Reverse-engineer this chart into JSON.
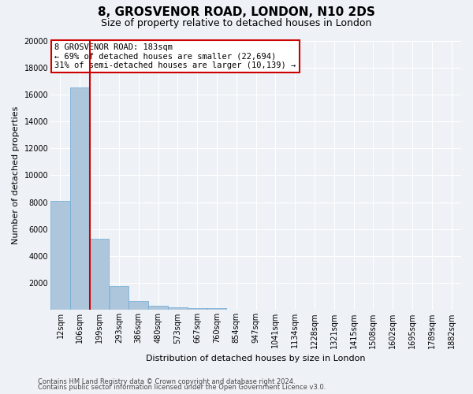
{
  "title": "8, GROSVENOR ROAD, LONDON, N10 2DS",
  "subtitle": "Size of property relative to detached houses in London",
  "xlabel": "Distribution of detached houses by size in London",
  "ylabel": "Number of detached properties",
  "categories": [
    "12sqm",
    "106sqm",
    "199sqm",
    "293sqm",
    "386sqm",
    "480sqm",
    "573sqm",
    "667sqm",
    "760sqm",
    "854sqm",
    "947sqm",
    "1041sqm",
    "1134sqm",
    "1228sqm",
    "1321sqm",
    "1415sqm",
    "1508sqm",
    "1602sqm",
    "1695sqm",
    "1789sqm",
    "1882sqm"
  ],
  "values": [
    8100,
    16500,
    5300,
    1800,
    650,
    300,
    200,
    150,
    130,
    0,
    0,
    0,
    0,
    0,
    0,
    0,
    0,
    0,
    0,
    0,
    0
  ],
  "bar_color": "#aec6dc",
  "bar_edge_color": "#6aaad4",
  "vline_color": "#cc0000",
  "annotation_text": "8 GROSVENOR ROAD: 183sqm\n← 69% of detached houses are smaller (22,694)\n31% of semi-detached houses are larger (10,139) →",
  "annotation_box_color": "#ffffff",
  "annotation_box_edgecolor": "#cc0000",
  "ylim": [
    0,
    20000
  ],
  "yticks": [
    0,
    2000,
    4000,
    6000,
    8000,
    10000,
    12000,
    14000,
    16000,
    18000,
    20000
  ],
  "footer_line1": "Contains HM Land Registry data © Crown copyright and database right 2024.",
  "footer_line2": "Contains public sector information licensed under the Open Government Licence v3.0.",
  "background_color": "#eef2f7",
  "grid_color": "#ffffff",
  "title_fontsize": 11,
  "subtitle_fontsize": 9,
  "axis_label_fontsize": 8,
  "tick_fontsize": 7,
  "footer_fontsize": 6,
  "annotation_fontsize": 7.5
}
